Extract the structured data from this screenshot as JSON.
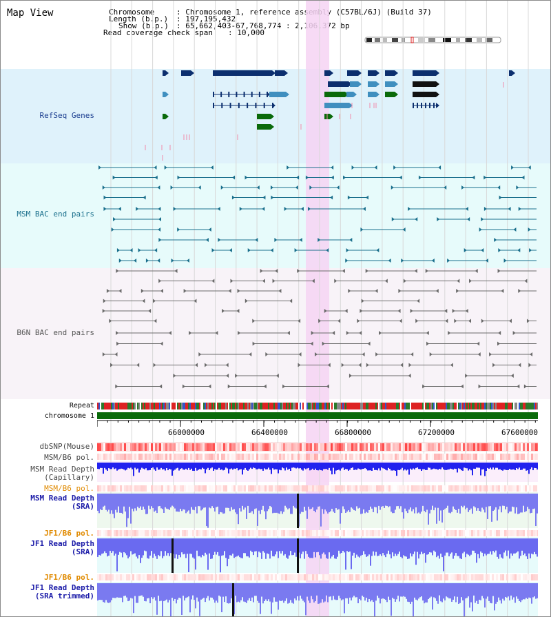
{
  "app": {
    "title": "Map View"
  },
  "info": {
    "chromosome_label": "Chromosome",
    "chromosome_value": ": Chromosome 1, reference assembly (C57BL/6J) (Build 37)",
    "length_label": "Length (b.p.)",
    "length_value": ": 197,195,432",
    "show_label": "Show (b.p.)",
    "show_value": ": 65,662,403-67,768,774 : 2,106,372 bp",
    "coverage_label": "Read coverage check span",
    "coverage_value": ": 10,000"
  },
  "tracks": {
    "refseq": "RefSeq Genes",
    "msm_bac": "MSM BAC end pairs",
    "b6n_bac": "B6N BAC end pairs",
    "repeat": "Repeat",
    "chromosome": "chromosome 1",
    "dbsnp": "dbSNP(Mouse)",
    "msm_b6_pol_1": "MSM/B6 pol.",
    "msm_read_depth_cap": "MSM Read Depth\n(Capillary)",
    "msm_b6_pol_2": "MSM/B6 pol.",
    "msm_read_depth_sra": "MSM Read Depth\n(SRA)",
    "jf1_b6_pol_1": "JF1/B6 pol.",
    "jf1_read_depth_sra": "JF1 Read Depth\n(SRA)",
    "jf1_b6_pol_2": "JF1/B6 pol.",
    "jf1_read_depth_trim": "JF1 Read Depth\n(SRA trimmed)"
  },
  "axis": {
    "ticks": [
      "66000000",
      "66400000",
      "66800000",
      "67200000",
      "67600000"
    ]
  },
  "colors": {
    "refseq_bg": "#dff2fb",
    "msm_bg": "#e7fbfb",
    "b6n_bg": "#f8f3f8",
    "highlight": "#f6d3f3",
    "gene_navy": "#0c2f6e",
    "gene_green": "#0a6a0a",
    "bac_teal": "#1a6f8c",
    "bac_gray": "#6a6a6a",
    "chrom_green": "#0a6a0a",
    "depth_blue": "#2222ee"
  }
}
